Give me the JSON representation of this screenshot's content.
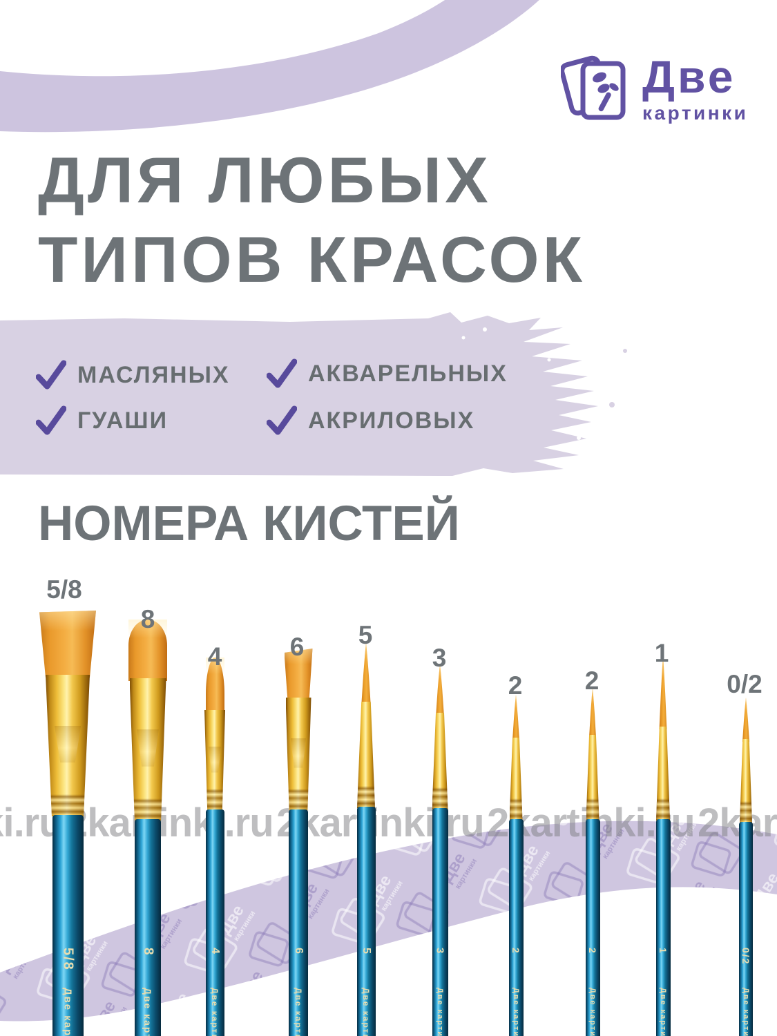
{
  "brand": {
    "logo_text_top": "Две",
    "logo_text_bottom": "картинки"
  },
  "headline": {
    "line1": "ДЛЯ ЛЮБЫХ",
    "line2": "ТИПОВ КРАСОК"
  },
  "paint_types": [
    {
      "label": "МАСЛЯНЫХ"
    },
    {
      "label": "АКВАРЕЛЬНЫХ"
    },
    {
      "label": "ГУАШИ"
    },
    {
      "label": "АКРИЛОВЫХ"
    }
  ],
  "section_title": "НОМЕРА КИСТЕЙ",
  "watermark_text": "2kartinki.ru",
  "handle_brand_text": "Две картинки",
  "brushes": [
    {
      "size": "5/8",
      "type": "flat-wide"
    },
    {
      "size": "8",
      "type": "flat-rounded"
    },
    {
      "size": "4",
      "type": "filbert"
    },
    {
      "size": "6",
      "type": "flat"
    },
    {
      "size": "5",
      "type": "round"
    },
    {
      "size": "3",
      "type": "round"
    },
    {
      "size": "2",
      "type": "round"
    },
    {
      "size": "2",
      "type": "round"
    },
    {
      "size": "1",
      "type": "round"
    },
    {
      "size": "0/2",
      "type": "round"
    }
  ],
  "colors": {
    "accent_purple": "#6152a3",
    "check_purple": "#584a9c",
    "lavender_smear": "#d8d1e3",
    "lavender_swoosh": "#cdc4df",
    "lavender_ribbon": "#cfc6e0",
    "heading_gray": "#6d7377",
    "bristle_orange": "#f0a735",
    "ferrule_gold": "#f3c94e",
    "handle_teal": "#1a7fae"
  }
}
